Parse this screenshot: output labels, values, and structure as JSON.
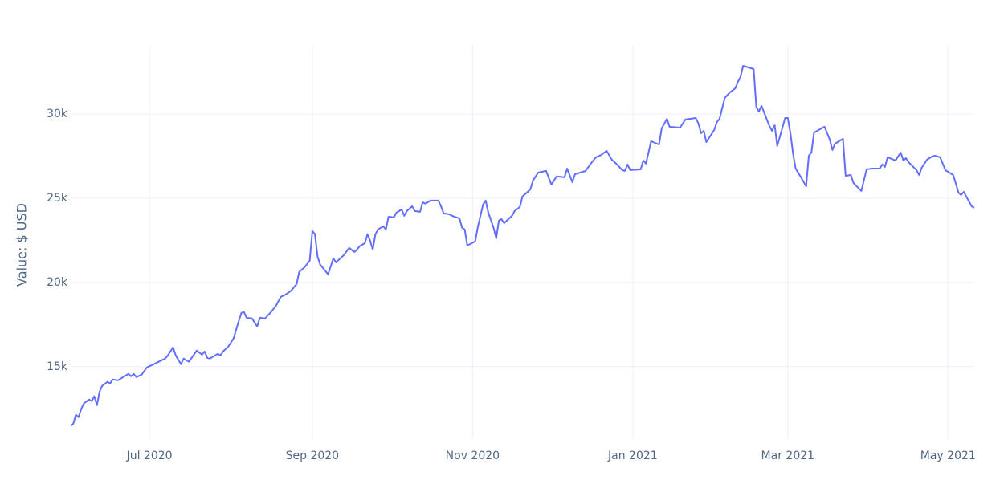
{
  "chart_data": {
    "type": "line",
    "y_label": "Value: $ USD",
    "x": [
      "2020-06-01",
      "2020-06-02",
      "2020-06-03",
      "2020-06-04",
      "2020-06-05",
      "2020-06-06",
      "2020-06-08",
      "2020-06-09",
      "2020-06-10",
      "2020-06-11",
      "2020-06-12",
      "2020-06-13",
      "2020-06-15",
      "2020-06-16",
      "2020-06-17",
      "2020-06-19",
      "2020-06-21",
      "2020-06-23",
      "2020-06-24",
      "2020-06-25",
      "2020-06-26",
      "2020-06-28",
      "2020-06-30",
      "2020-07-02",
      "2020-07-05",
      "2020-07-07",
      "2020-07-08",
      "2020-07-10",
      "2020-07-11",
      "2020-07-13",
      "2020-07-14",
      "2020-07-16",
      "2020-07-19",
      "2020-07-21",
      "2020-07-22",
      "2020-07-23",
      "2020-07-24",
      "2020-07-27",
      "2020-07-28",
      "2020-07-29",
      "2020-07-31",
      "2020-08-02",
      "2020-08-04",
      "2020-08-05",
      "2020-08-06",
      "2020-08-07",
      "2020-08-09",
      "2020-08-11",
      "2020-08-12",
      "2020-08-14",
      "2020-08-16",
      "2020-08-18",
      "2020-08-20",
      "2020-08-22",
      "2020-08-24",
      "2020-08-26",
      "2020-08-27",
      "2020-08-29",
      "2020-08-31",
      "2020-09-01",
      "2020-09-02",
      "2020-09-03",
      "2020-09-04",
      "2020-09-07",
      "2020-09-09",
      "2020-09-10",
      "2020-09-13",
      "2020-09-15",
      "2020-09-17",
      "2020-09-18",
      "2020-09-19",
      "2020-09-21",
      "2020-09-22",
      "2020-09-23",
      "2020-09-24",
      "2020-09-25",
      "2020-09-26",
      "2020-09-28",
      "2020-09-29",
      "2020-09-30",
      "2020-10-02",
      "2020-10-03",
      "2020-10-05",
      "2020-10-06",
      "2020-10-07",
      "2020-10-09",
      "2020-10-10",
      "2020-10-12",
      "2020-10-13",
      "2020-10-14",
      "2020-10-16",
      "2020-10-19",
      "2020-10-20",
      "2020-10-21",
      "2020-10-23",
      "2020-10-25",
      "2020-10-27",
      "2020-10-28",
      "2020-10-29",
      "2020-10-30",
      "2020-11-02",
      "2020-11-03",
      "2020-11-05",
      "2020-11-06",
      "2020-11-07",
      "2020-11-09",
      "2020-11-10",
      "2020-11-11",
      "2020-11-12",
      "2020-11-13",
      "2020-11-16",
      "2020-11-17",
      "2020-11-19",
      "2020-11-20",
      "2020-11-23",
      "2020-11-24",
      "2020-11-26",
      "2020-11-29",
      "2020-12-01",
      "2020-12-03",
      "2020-12-06",
      "2020-12-07",
      "2020-12-09",
      "2020-12-10",
      "2020-12-12",
      "2020-12-14",
      "2020-12-16",
      "2020-12-18",
      "2020-12-20",
      "2020-12-22",
      "2020-12-24",
      "2020-12-26",
      "2020-12-28",
      "2020-12-29",
      "2020-12-30",
      "2020-12-31",
      "2021-01-04",
      "2021-01-05",
      "2021-01-06",
      "2021-01-08",
      "2021-01-11",
      "2021-01-12",
      "2021-01-14",
      "2021-01-15",
      "2021-01-19",
      "2021-01-21",
      "2021-01-25",
      "2021-01-26",
      "2021-01-27",
      "2021-01-28",
      "2021-01-29",
      "2021-02-01",
      "2021-02-02",
      "2021-02-03",
      "2021-02-05",
      "2021-02-07",
      "2021-02-09",
      "2021-02-10",
      "2021-02-11",
      "2021-02-12",
      "2021-02-16",
      "2021-02-17",
      "2021-02-18",
      "2021-02-19",
      "2021-02-22",
      "2021-02-23",
      "2021-02-24",
      "2021-02-25",
      "2021-02-28",
      "2021-03-01",
      "2021-03-02",
      "2021-03-03",
      "2021-03-04",
      "2021-03-06",
      "2021-03-08",
      "2021-03-09",
      "2021-03-10",
      "2021-03-11",
      "2021-03-15",
      "2021-03-17",
      "2021-03-18",
      "2021-03-19",
      "2021-03-22",
      "2021-03-23",
      "2021-03-25",
      "2021-03-26",
      "2021-03-29",
      "2021-03-31",
      "2021-04-02",
      "2021-04-05",
      "2021-04-06",
      "2021-04-07",
      "2021-04-08",
      "2021-04-11",
      "2021-04-13",
      "2021-04-14",
      "2021-04-15",
      "2021-04-16",
      "2021-04-19",
      "2021-04-20",
      "2021-04-21",
      "2021-04-23",
      "2021-04-25",
      "2021-04-26",
      "2021-04-28",
      "2021-04-30",
      "2021-05-03",
      "2021-05-05",
      "2021-05-06",
      "2021-05-07",
      "2021-05-10",
      "2021-05-11"
    ],
    "values": [
      11480,
      11620,
      12140,
      12000,
      12480,
      12810,
      13050,
      12950,
      13240,
      12710,
      13520,
      13860,
      14100,
      14000,
      14240,
      14190,
      14380,
      14570,
      14430,
      14570,
      14380,
      14520,
      14950,
      15100,
      15330,
      15480,
      15670,
      16140,
      15670,
      15140,
      15480,
      15290,
      15950,
      15710,
      15900,
      15520,
      15480,
      15760,
      15670,
      15900,
      16190,
      16670,
      17710,
      18190,
      18240,
      17900,
      17860,
      17380,
      17900,
      17860,
      18190,
      18570,
      19140,
      19290,
      19520,
      19900,
      20620,
      20900,
      21290,
      23050,
      22860,
      21520,
      21050,
      20480,
      21430,
      21190,
      21620,
      22050,
      21810,
      21950,
      22140,
      22330,
      22860,
      22480,
      21950,
      22860,
      23140,
      23330,
      23140,
      23900,
      23860,
      24140,
      24330,
      23950,
      24240,
      24520,
      24240,
      24190,
      24760,
      24670,
      24860,
      24860,
      24520,
      24100,
      24050,
      23900,
      23810,
      23240,
      23140,
      22190,
      22430,
      23290,
      24620,
      24860,
      24140,
      23240,
      22620,
      23670,
      23760,
      23520,
      23950,
      24240,
      24480,
      25100,
      25520,
      26050,
      26520,
      26620,
      25810,
      26290,
      26240,
      26760,
      25950,
      26430,
      26520,
      26620,
      27050,
      27430,
      27570,
      27810,
      27290,
      27000,
      26670,
      26620,
      27000,
      26670,
      26710,
      27240,
      27050,
      28380,
      28190,
      29140,
      29710,
      29240,
      29190,
      29670,
      29760,
      29430,
      28860,
      29000,
      28330,
      29050,
      29520,
      29710,
      30950,
      31290,
      31520,
      31900,
      32190,
      32860,
      32670,
      30430,
      30140,
      30480,
      29290,
      29000,
      29330,
      28100,
      29760,
      29760,
      28860,
      27670,
      26760,
      26240,
      25710,
      27520,
      27710,
      28900,
      29240,
      28480,
      27860,
      28240,
      28520,
      26330,
      26380,
      25900,
      25430,
      26710,
      26760,
      26760,
      27000,
      26860,
      27430,
      27240,
      27710,
      27240,
      27380,
      27140,
      26670,
      26380,
      26810,
      27290,
      27480,
      27520,
      27430,
      26670,
      26380,
      25330,
      25190,
      25380,
      24520,
      24430
    ],
    "color": "#636efa",
    "xlim": [
      "2020-06-01",
      "2021-05-11"
    ],
    "xticks": [
      {
        "value": "2020-07-01",
        "label": "Jul 2020"
      },
      {
        "value": "2020-09-01",
        "label": "Sep 2020"
      },
      {
        "value": "2020-11-01",
        "label": "Nov 2020"
      },
      {
        "value": "2021-01-01",
        "label": "Jan 2021"
      },
      {
        "value": "2021-03-01",
        "label": "Mar 2021"
      },
      {
        "value": "2021-05-01",
        "label": "May 2021"
      }
    ],
    "ylim": [
      10700,
      34050
    ],
    "yticks": [
      {
        "value": 15000,
        "label": "15k"
      },
      {
        "value": 20000,
        "label": "20k"
      },
      {
        "value": 25000,
        "label": "25k"
      },
      {
        "value": 30000,
        "label": "30k"
      }
    ],
    "grid": true
  }
}
